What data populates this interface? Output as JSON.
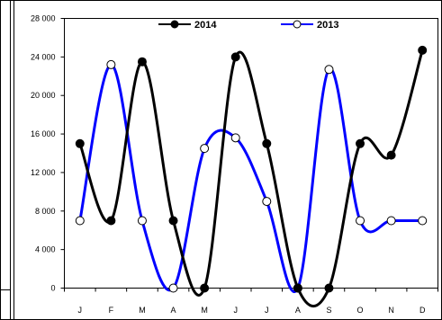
{
  "chart_data": {
    "type": "line",
    "categories": [
      "J",
      "F",
      "M",
      "A",
      "M",
      "J",
      "J",
      "A",
      "S",
      "O",
      "N",
      "D"
    ],
    "series": [
      {
        "name": "2014",
        "color": "#000000",
        "marker": "filled-circle",
        "values": [
          15000,
          7000,
          23500,
          7000,
          0,
          24000,
          15000,
          0,
          0,
          15000,
          13800,
          24700
        ]
      },
      {
        "name": "2013",
        "color": "#0000ff",
        "marker": "hollow-circle",
        "values": [
          7000,
          23200,
          7000,
          0,
          14500,
          15600,
          9000,
          0,
          22700,
          7000,
          7000,
          7000
        ]
      }
    ],
    "yticks": [
      "0",
      "4 000",
      "8 000",
      "12 000",
      "16 000",
      "20 000",
      "24 000",
      "28 000"
    ],
    "ylim": [
      0,
      28000
    ],
    "legend_position": "top",
    "grid": false,
    "smooth": true
  }
}
